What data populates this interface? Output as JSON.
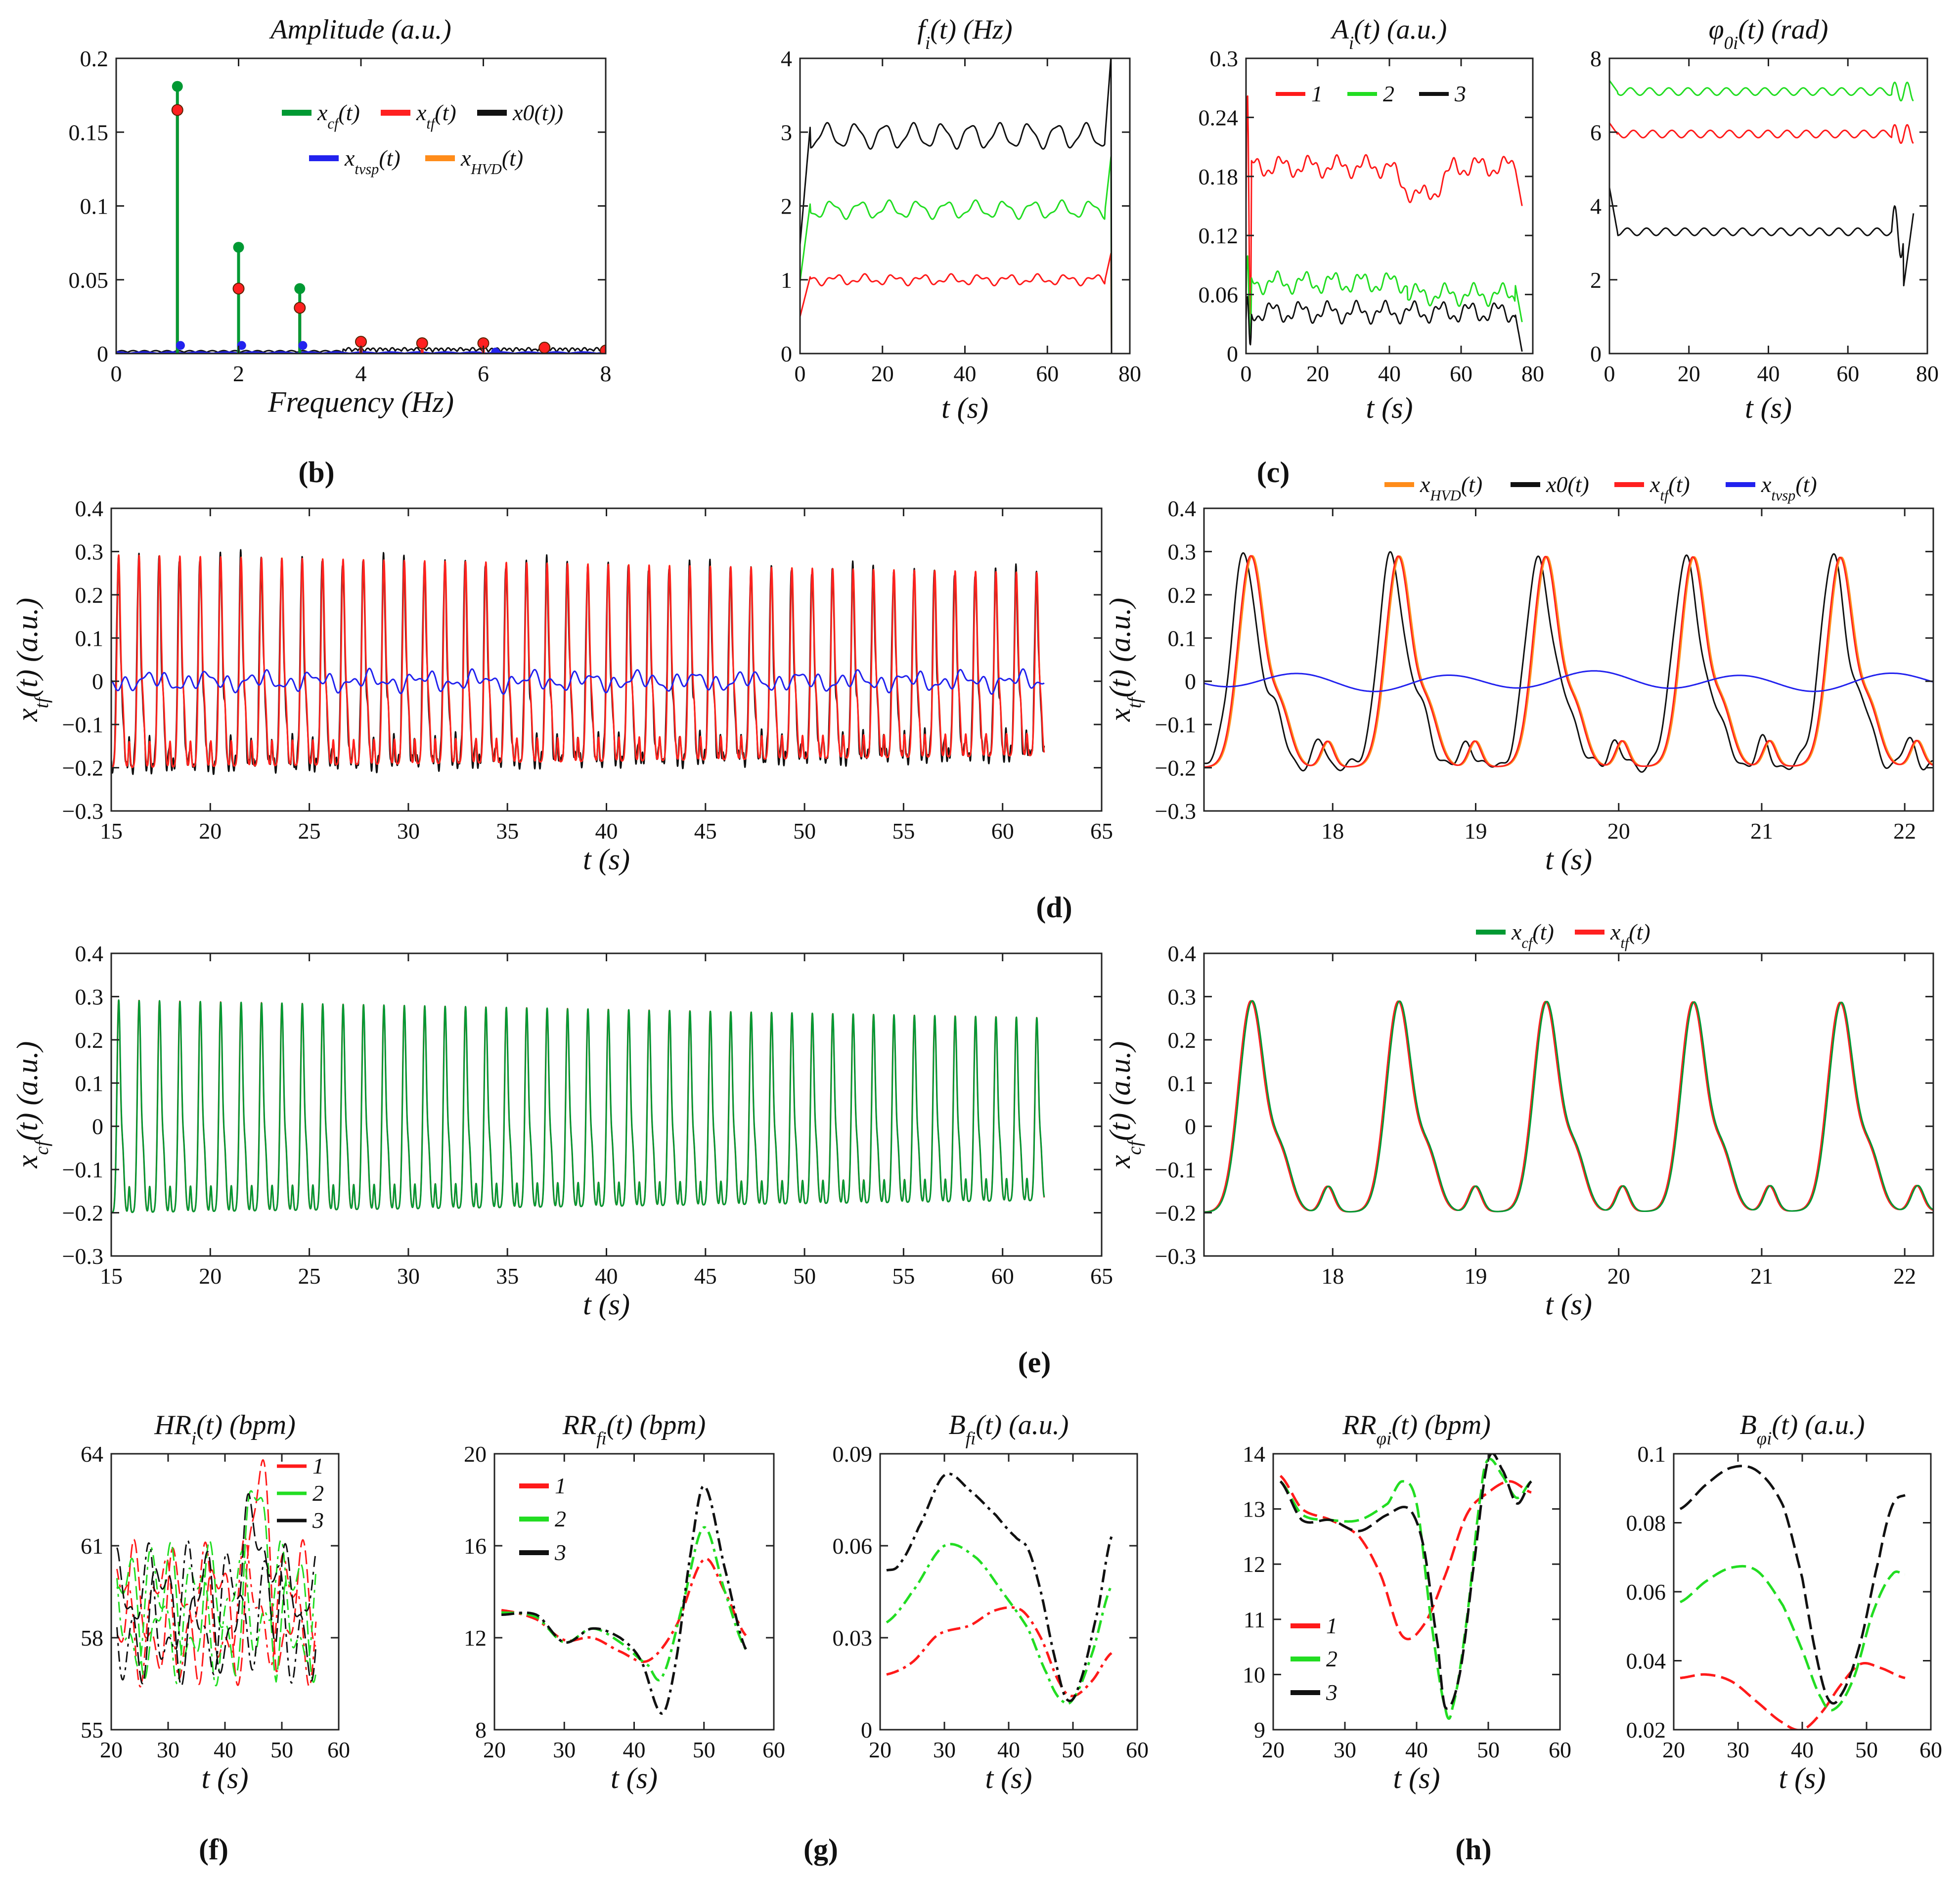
{
  "colors": {
    "c1": "#ff1a1a",
    "c2": "#22dd22",
    "c3": "#111111",
    "cf": "#009933",
    "tf": "#ff2020",
    "x0": "#111111",
    "tvsp": "#2222ee",
    "hvd": "#ff8c1a"
  },
  "labels": {
    "b": "(b)",
    "c": "(c)",
    "d": "(d)",
    "e": "(e)",
    "f": "(f)",
    "g": "(g)",
    "h": "(h)"
  },
  "chart_data": [
    {
      "id": "spec",
      "type": "line",
      "title": "Amplitude (a.u.)",
      "xlabel": "Frequency (Hz)",
      "ylabel": "",
      "xlim": [
        0,
        8
      ],
      "ylim": [
        0,
        0.2
      ],
      "xticks": [
        "0",
        "2",
        "4",
        "6",
        "8"
      ],
      "yticks": [
        "0",
        "0.05",
        "0.1",
        "0.15",
        "0.2"
      ],
      "legend": [
        "x_cf(t)",
        "x_tf(t)",
        "x0(t))",
        "x_tvsp(t)",
        "x_HVD(t)"
      ],
      "series": [
        {
          "name": "x_cf(t)",
          "x": [
            1,
            2,
            3
          ],
          "values": [
            0.181,
            0.072,
            0.044
          ]
        },
        {
          "name": "x_tf(t)",
          "x": [
            1,
            2,
            3,
            4,
            5,
            6,
            7,
            8
          ],
          "values": [
            0.165,
            0.044,
            0.031,
            0.008,
            0.007,
            0.007,
            0.004,
            0.002
          ]
        }
      ]
    },
    {
      "id": "fi",
      "type": "line",
      "title": "f_i(t) (Hz)",
      "xlabel": "t (s)",
      "xlim": [
        0,
        80
      ],
      "ylim": [
        0,
        4
      ],
      "xticks": [
        "0",
        "20",
        "40",
        "60",
        "80"
      ],
      "yticks": [
        "0",
        "1",
        "2",
        "3",
        "4"
      ],
      "series": [
        {
          "name": "1",
          "mean": 1.0
        },
        {
          "name": "2",
          "mean": 1.95
        },
        {
          "name": "3",
          "mean": 2.95
        }
      ]
    },
    {
      "id": "ai",
      "type": "line",
      "title": "A_i(t) (a.u.)",
      "xlabel": "t (s)",
      "xlim": [
        0,
        80
      ],
      "ylim": [
        0,
        0.3
      ],
      "xticks": [
        "0",
        "20",
        "40",
        "60",
        "80"
      ],
      "yticks": [
        "0",
        "0.06",
        "0.12",
        "0.18",
        "0.24",
        "0.3"
      ],
      "legend": [
        "1",
        "2",
        "3"
      ],
      "series": [
        {
          "name": "1",
          "mean": 0.19
        },
        {
          "name": "2",
          "mean": 0.072
        },
        {
          "name": "3",
          "mean": 0.042
        }
      ]
    },
    {
      "id": "phi",
      "type": "line",
      "title": "φ_0i(t) (rad)",
      "xlabel": "t (s)",
      "xlim": [
        0,
        80
      ],
      "ylim": [
        0,
        8
      ],
      "xticks": [
        "0",
        "20",
        "40",
        "60",
        "80"
      ],
      "yticks": [
        "0",
        "2",
        "4",
        "6",
        "8"
      ],
      "series": [
        {
          "name": "1",
          "mean": 5.95
        },
        {
          "name": "2",
          "mean": 7.1
        },
        {
          "name": "3",
          "mean": 3.3
        }
      ]
    },
    {
      "id": "d1",
      "type": "line",
      "xlabel": "t (s)",
      "ylabel": "x_tf(t) (a.u.)",
      "xlim": [
        15,
        65
      ],
      "ylim": [
        -0.3,
        0.4
      ],
      "xticks": [
        "15",
        "20",
        "25",
        "30",
        "35",
        "40",
        "45",
        "50",
        "55",
        "60",
        "65"
      ],
      "yticks": [
        "−0.3",
        "−0.2",
        "−0.1",
        "0",
        "0.1",
        "0.2",
        "0.3",
        "0.4"
      ],
      "series": [
        {
          "name": "x_HVD(t)",
          "period_s": 1.03,
          "peak": 0.29,
          "trough": -0.2
        },
        {
          "name": "x_tvsp(t)",
          "amplitude": 0.02
        }
      ]
    },
    {
      "id": "d2",
      "type": "line",
      "xlabel": "t (s)",
      "ylabel": "x_tf(t) (a.u.)",
      "xlim": [
        17.1,
        22.2
      ],
      "ylim": [
        -0.3,
        0.4
      ],
      "xticks": [
        "18",
        "19",
        "20",
        "21",
        "22"
      ],
      "yticks": [
        "−0.3",
        "−0.2",
        "−0.1",
        "0",
        "0.1",
        "0.2",
        "0.3",
        "0.4"
      ],
      "legend": [
        "x_HVD(t)",
        "x0(t)",
        "x_tf(t)",
        "x_tvsp(t)"
      ]
    },
    {
      "id": "e1",
      "type": "line",
      "xlabel": "t (s)",
      "ylabel": "x_cf(t) (a.u.)",
      "xlim": [
        15,
        65
      ],
      "ylim": [
        -0.3,
        0.4
      ],
      "xticks": [
        "15",
        "20",
        "25",
        "30",
        "35",
        "40",
        "45",
        "50",
        "55",
        "60",
        "65"
      ],
      "yticks": [
        "−0.3",
        "−0.2",
        "−0.1",
        "0",
        "0.1",
        "0.2",
        "0.3",
        "0.4"
      ]
    },
    {
      "id": "e2",
      "type": "line",
      "xlabel": "t (s)",
      "ylabel": "x_cf(t) (a.u.)",
      "xlim": [
        17.1,
        22.2
      ],
      "ylim": [
        -0.3,
        0.4
      ],
      "xticks": [
        "18",
        "19",
        "20",
        "21",
        "22"
      ],
      "yticks": [
        "−0.3",
        "−0.2",
        "−0.1",
        "0",
        "0.1",
        "0.2",
        "0.3",
        "0.4"
      ],
      "legend": [
        "x_cf(t)",
        "x_tf(t)"
      ]
    },
    {
      "id": "hr",
      "type": "line",
      "title": "HR_i(t) (bpm)",
      "xlabel": "t (s)",
      "xlim": [
        20,
        60
      ],
      "ylim": [
        55,
        64
      ],
      "xticks": [
        "20",
        "30",
        "40",
        "50",
        "60"
      ],
      "yticks": [
        "55",
        "58",
        "61",
        "64"
      ],
      "legend": [
        "1",
        "2",
        "3"
      ]
    },
    {
      "id": "rrf",
      "type": "line",
      "title": "RR_fi(t) (bpm)",
      "xlabel": "t (s)",
      "xlim": [
        20,
        60
      ],
      "ylim": [
        8,
        20
      ],
      "xticks": [
        "20",
        "30",
        "40",
        "50",
        "60"
      ],
      "yticks": [
        "8",
        "12",
        "16",
        "20"
      ],
      "legend": [
        "1",
        "2",
        "3"
      ],
      "series": [
        {
          "name": "1",
          "x": [
            21,
            26,
            30,
            34,
            38,
            42,
            46,
            50,
            53,
            56
          ],
          "values": [
            13.2,
            12.8,
            11.9,
            12,
            11.4,
            11,
            12.5,
            15.4,
            14,
            12.1
          ]
        },
        {
          "name": "2",
          "x": [
            21,
            26,
            30,
            34,
            38,
            42,
            44,
            47,
            50,
            53,
            56
          ],
          "values": [
            13.1,
            12.9,
            11.8,
            12.4,
            11.8,
            10.8,
            10.3,
            13.5,
            16.8,
            14,
            11.5
          ]
        },
        {
          "name": "3",
          "x": [
            21,
            26,
            30,
            34,
            38,
            41,
            44,
            46,
            48,
            50,
            53,
            56
          ],
          "values": [
            13,
            13,
            11.8,
            12.4,
            12,
            11,
            8.7,
            11,
            15.5,
            18.6,
            15,
            11.5
          ]
        }
      ]
    },
    {
      "id": "bf",
      "type": "line",
      "title": "B_fi(t) (a.u.)",
      "xlabel": "t (s)",
      "xlim": [
        20,
        60
      ],
      "ylim": [
        0,
        0.09
      ],
      "xticks": [
        "20",
        "30",
        "40",
        "50",
        "60"
      ],
      "yticks": [
        "0",
        "0.03",
        "0.06",
        "0.09"
      ],
      "series": [
        {
          "name": "1",
          "x": [
            21,
            25,
            29,
            34,
            38,
            42,
            45,
            48,
            50,
            53,
            56
          ],
          "values": [
            0.018,
            0.022,
            0.031,
            0.034,
            0.039,
            0.039,
            0.03,
            0.015,
            0.011,
            0.016,
            0.025
          ]
        },
        {
          "name": "2",
          "x": [
            21,
            25,
            30,
            35,
            39,
            43,
            46,
            48,
            50,
            53,
            56
          ],
          "values": [
            0.035,
            0.045,
            0.06,
            0.056,
            0.045,
            0.033,
            0.018,
            0.01,
            0.01,
            0.025,
            0.047
          ]
        },
        {
          "name": "3",
          "x": [
            21,
            23,
            26,
            30,
            34,
            38,
            41,
            43,
            45,
            47,
            49,
            51,
            54,
            56
          ],
          "values": [
            0.052,
            0.054,
            0.066,
            0.083,
            0.078,
            0.07,
            0.063,
            0.059,
            0.045,
            0.025,
            0.01,
            0.015,
            0.04,
            0.063
          ]
        }
      ]
    },
    {
      "id": "rrp",
      "type": "line",
      "title": "RR_φi(t) (bpm)",
      "xlabel": "t (s)",
      "xlim": [
        20,
        60
      ],
      "ylim": [
        9,
        14
      ],
      "xticks": [
        "20",
        "30",
        "40",
        "50",
        "60"
      ],
      "yticks": [
        "9",
        "10",
        "11",
        "12",
        "13",
        "14"
      ],
      "legend": [
        "1",
        "2",
        "3"
      ],
      "series": [
        {
          "name": "1",
          "x": [
            21,
            24,
            28,
            32,
            35,
            38,
            41,
            44,
            47,
            50,
            53,
            56
          ],
          "values": [
            13.6,
            13,
            12.8,
            12.5,
            11.8,
            10.7,
            10.9,
            11.8,
            12.9,
            13.3,
            13.5,
            13.3
          ]
        },
        {
          "name": "2",
          "x": [
            21,
            24,
            28,
            32,
            36,
            38,
            40,
            42,
            44,
            45,
            47,
            49,
            50,
            52,
            54,
            56
          ],
          "values": [
            13.5,
            12.9,
            12.8,
            12.8,
            13.1,
            13.5,
            13.1,
            11,
            9.4,
            9.4,
            11,
            13.3,
            13.9,
            13.6,
            13.2,
            13.5
          ]
        },
        {
          "name": "3",
          "x": [
            21,
            24,
            28,
            32,
            36,
            39,
            41,
            43,
            44,
            46,
            48,
            50,
            52,
            54,
            56
          ],
          "values": [
            13.5,
            12.8,
            12.8,
            12.6,
            12.9,
            13,
            12.3,
            10.5,
            9.4,
            10,
            12,
            13.9,
            13.7,
            13.1,
            13.5
          ]
        }
      ]
    },
    {
      "id": "bp",
      "type": "line",
      "title": "B_φi(t) (a.u.)",
      "xlabel": "t (s)",
      "xlim": [
        20,
        60
      ],
      "ylim": [
        0.02,
        0.1
      ],
      "xticks": [
        "20",
        "30",
        "40",
        "50",
        "60"
      ],
      "yticks": [
        "0.02",
        "0.04",
        "0.06",
        "0.08",
        "0.1"
      ],
      "series": [
        {
          "name": "1",
          "x": [
            21,
            25,
            29,
            33,
            37,
            40,
            43,
            46,
            49,
            52,
            56
          ],
          "values": [
            0.035,
            0.036,
            0.034,
            0.028,
            0.022,
            0.02,
            0.025,
            0.033,
            0.039,
            0.038,
            0.035
          ]
        },
        {
          "name": "2",
          "x": [
            21,
            25,
            29,
            33,
            37,
            40,
            43,
            45,
            48,
            51,
            54,
            56
          ],
          "values": [
            0.057,
            0.063,
            0.067,
            0.066,
            0.056,
            0.043,
            0.029,
            0.026,
            0.035,
            0.054,
            0.065,
            0.065
          ]
        },
        {
          "name": "3",
          "x": [
            21,
            25,
            29,
            33,
            37,
            40,
            42,
            44,
            46,
            49,
            52,
            54,
            56
          ],
          "values": [
            0.084,
            0.091,
            0.096,
            0.095,
            0.085,
            0.064,
            0.043,
            0.029,
            0.03,
            0.045,
            0.07,
            0.085,
            0.088
          ]
        }
      ]
    }
  ]
}
